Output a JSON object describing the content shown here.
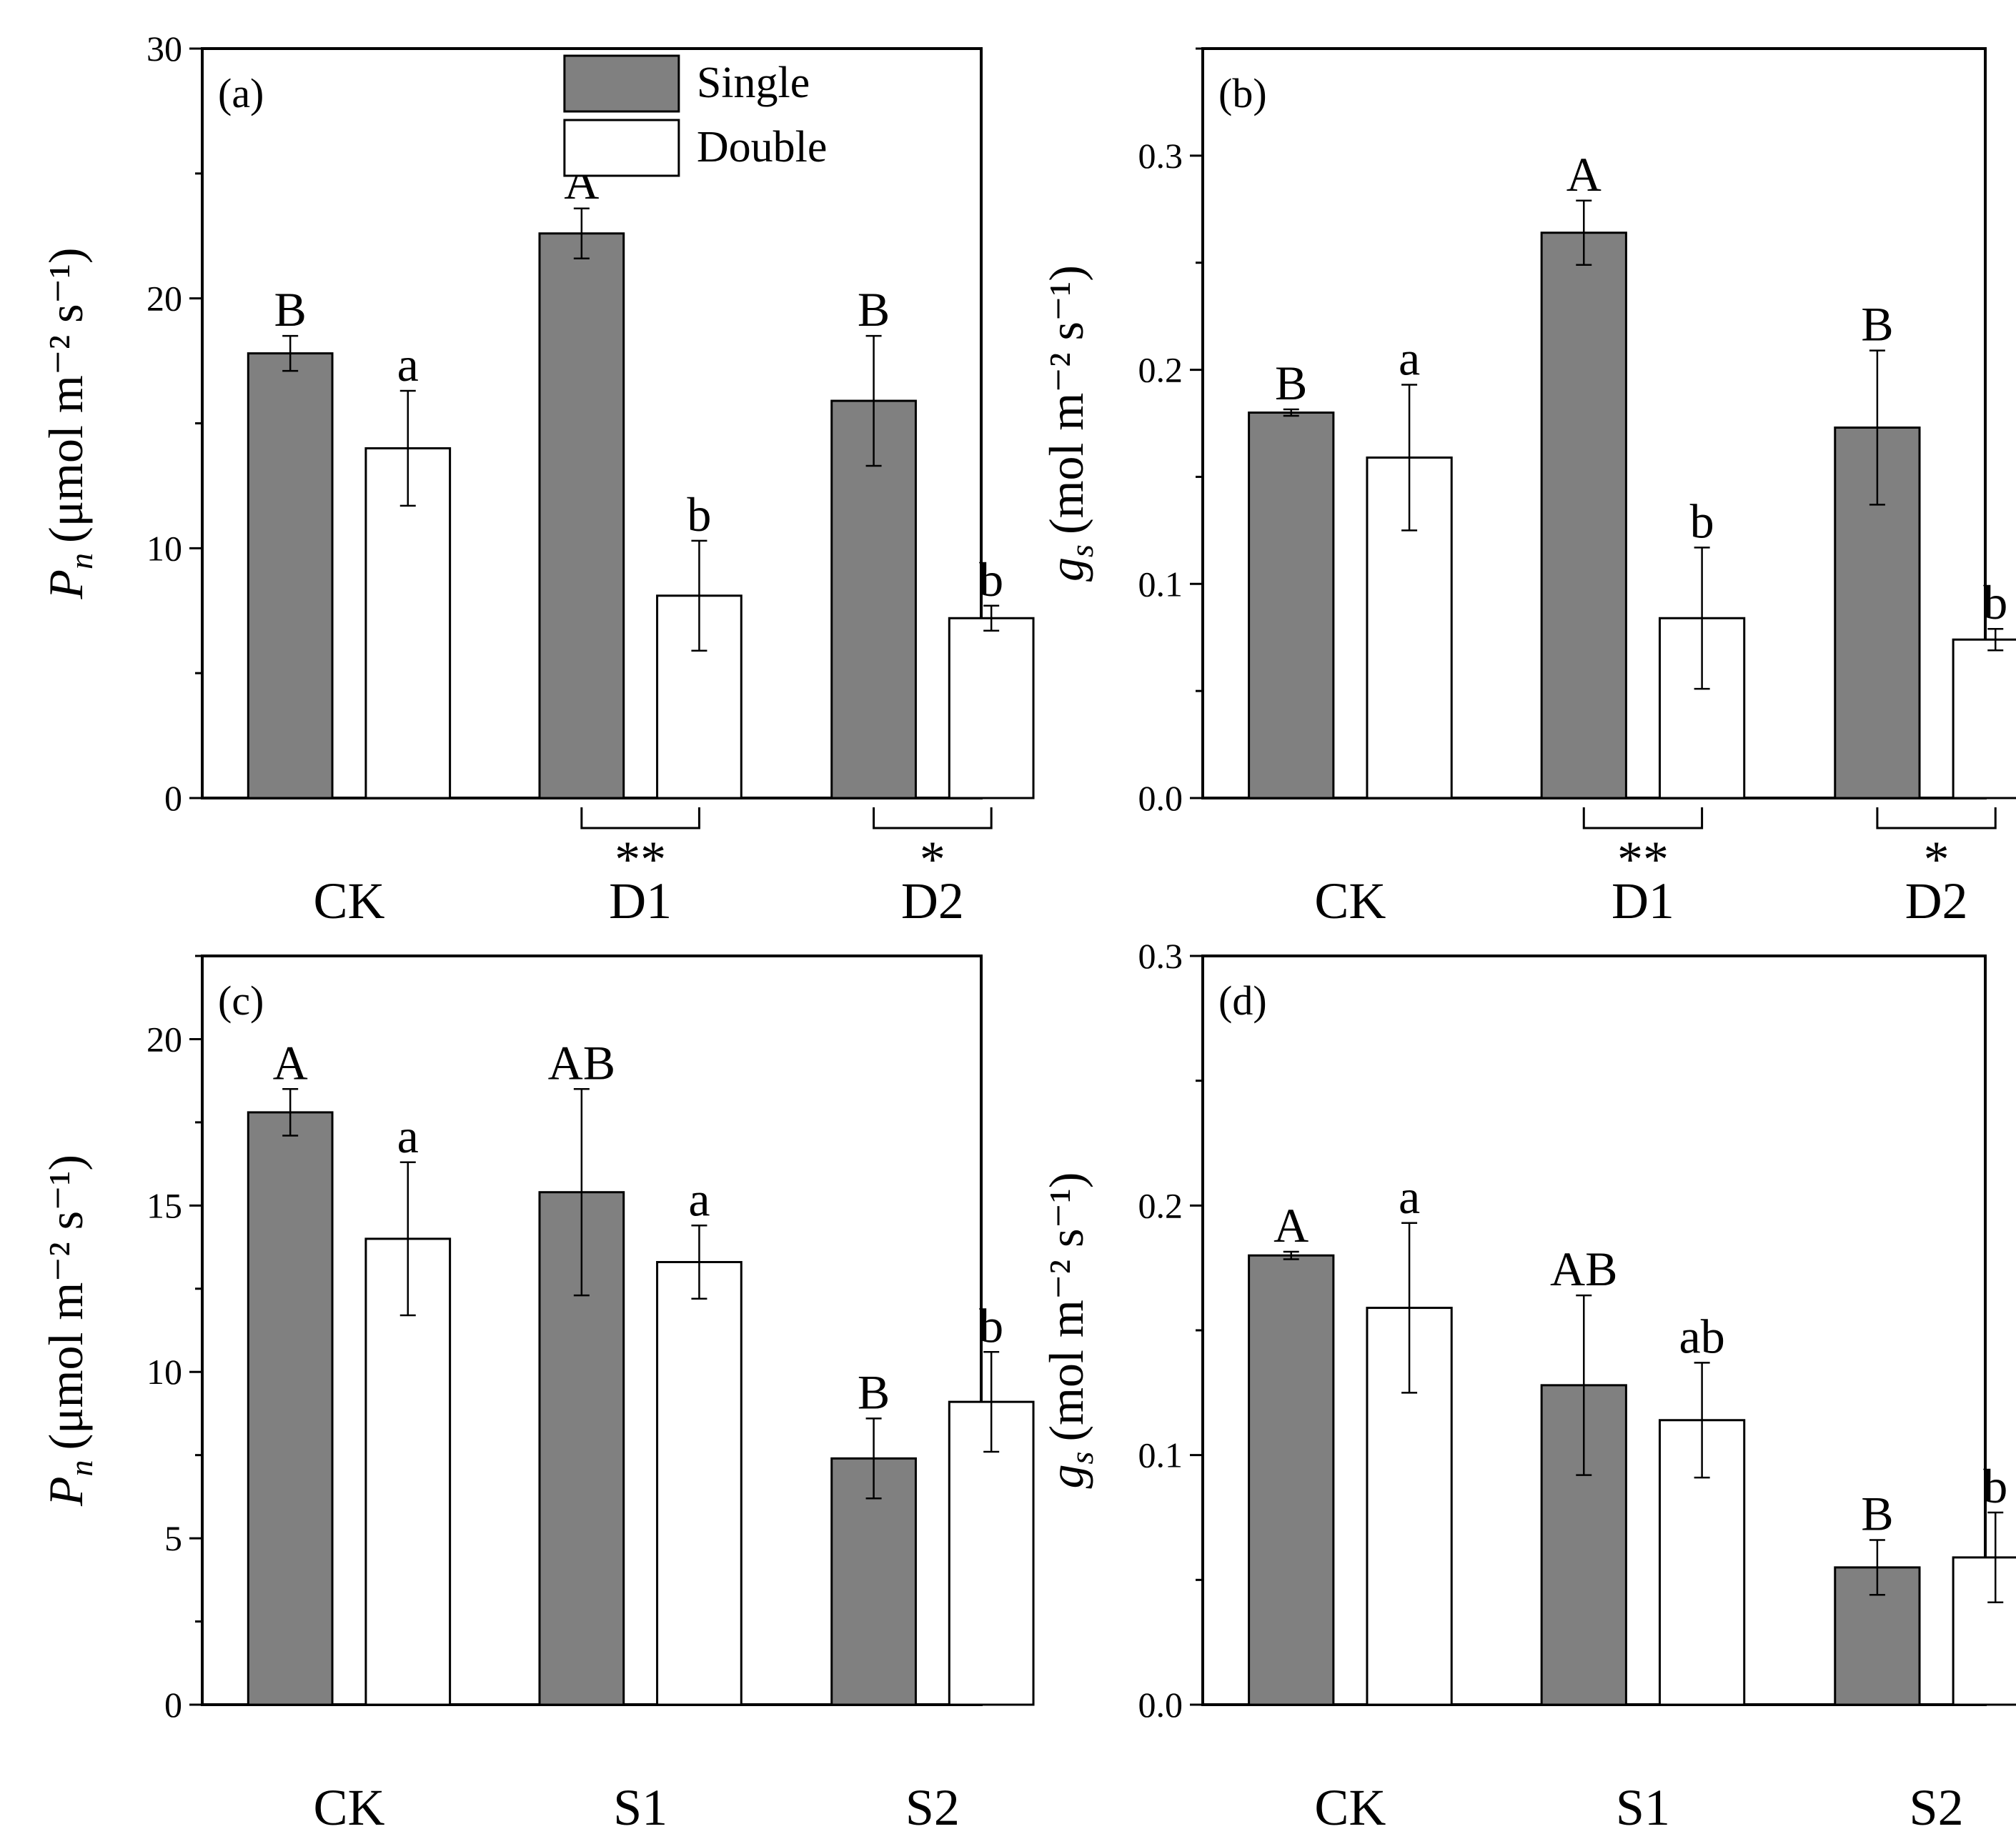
{
  "colors": {
    "single": "#808080",
    "double": "#ffffff",
    "stroke": "#000000"
  },
  "legend": {
    "single": "Single",
    "double": "Double"
  },
  "chart_data": [
    {
      "panel": "(a)",
      "type": "bar",
      "ylabel_main": "P",
      "ylabel_sub": "n",
      "ylabel_unit": "(μmol m⁻² s⁻¹)",
      "ylim": [
        0,
        30
      ],
      "yticks": [
        0,
        10,
        20,
        30
      ],
      "ytick_labels": [
        "0",
        "10",
        "20",
        "30"
      ],
      "categories": [
        "CK",
        "D1",
        "D2"
      ],
      "series": [
        {
          "name": "Single",
          "values": [
            17.8,
            22.6,
            15.9
          ],
          "errors": [
            0.7,
            1.0,
            2.6
          ],
          "letters": [
            "B",
            "A",
            "B"
          ]
        },
        {
          "name": "Double",
          "values": [
            14.0,
            8.1,
            7.2
          ],
          "errors": [
            2.3,
            2.2,
            0.5
          ],
          "letters": [
            "a",
            "b",
            "b"
          ]
        }
      ],
      "significance": [
        {
          "category_index": 1,
          "label": "**"
        },
        {
          "category_index": 2,
          "label": "*"
        }
      ],
      "show_legend": true
    },
    {
      "panel": "(b)",
      "type": "bar",
      "ylabel_main": "g",
      "ylabel_sub": "s",
      "ylabel_unit": "(mol m⁻² s⁻¹)",
      "ylim": [
        0,
        0.35
      ],
      "yticks": [
        0,
        0.1,
        0.2,
        0.3
      ],
      "ytick_labels": [
        "0.0",
        "0.1",
        "0.2",
        "0.3"
      ],
      "categories": [
        "CK",
        "D1",
        "D2"
      ],
      "series": [
        {
          "name": "Single",
          "values": [
            0.18,
            0.264,
            0.173
          ],
          "errors": [
            0.0015,
            0.015,
            0.036
          ],
          "letters": [
            "B",
            "A",
            "B"
          ]
        },
        {
          "name": "Double",
          "values": [
            0.159,
            0.084,
            0.074
          ],
          "errors": [
            0.034,
            0.033,
            0.005
          ],
          "letters": [
            "a",
            "b",
            "b"
          ]
        }
      ],
      "significance": [
        {
          "category_index": 1,
          "label": "**"
        },
        {
          "category_index": 2,
          "label": "*"
        }
      ],
      "show_legend": false
    },
    {
      "panel": "(c)",
      "type": "bar",
      "ylabel_main": "P",
      "ylabel_sub": "n",
      "ylabel_unit": "(μmol m⁻² s⁻¹)",
      "ylim": [
        0,
        22.5
      ],
      "yticks": [
        0,
        5,
        10,
        15,
        20
      ],
      "ytick_labels": [
        "0",
        "5",
        "10",
        "15",
        "20"
      ],
      "categories": [
        "CK",
        "S1",
        "S2"
      ],
      "series": [
        {
          "name": "Single",
          "values": [
            17.8,
            15.4,
            7.4
          ],
          "errors": [
            0.7,
            3.1,
            1.2
          ],
          "letters": [
            "A",
            "AB",
            "B"
          ]
        },
        {
          "name": "Double",
          "values": [
            14.0,
            13.3,
            9.1
          ],
          "errors": [
            2.3,
            1.1,
            1.5
          ],
          "letters": [
            "a",
            "a",
            "b"
          ]
        }
      ],
      "significance": [],
      "show_legend": false
    },
    {
      "panel": "(d)",
      "type": "bar",
      "ylabel_main": "g",
      "ylabel_sub": "s",
      "ylabel_unit": "(mol m⁻² s⁻¹)",
      "ylim": [
        0,
        0.3
      ],
      "yticks": [
        0,
        0.1,
        0.2,
        0.3
      ],
      "ytick_labels": [
        "0.0",
        "0.1",
        "0.2",
        "0.3"
      ],
      "categories": [
        "CK",
        "S1",
        "S2"
      ],
      "series": [
        {
          "name": "Single",
          "values": [
            0.18,
            0.128,
            0.055
          ],
          "errors": [
            0.0015,
            0.036,
            0.011
          ],
          "letters": [
            "A",
            "AB",
            "B"
          ]
        },
        {
          "name": "Double",
          "values": [
            0.159,
            0.114,
            0.059
          ],
          "errors": [
            0.034,
            0.023,
            0.018
          ],
          "letters": [
            "a",
            "ab",
            "b"
          ]
        }
      ],
      "significance": [],
      "show_legend": false
    }
  ]
}
